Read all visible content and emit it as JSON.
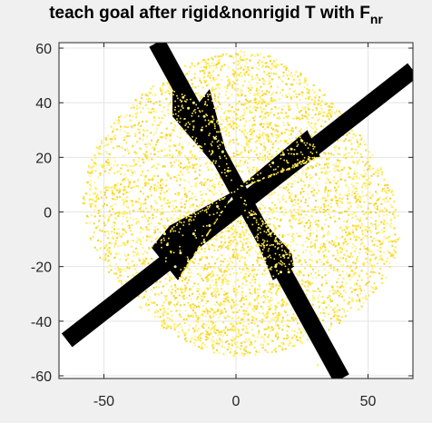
{
  "chart_data": {
    "type": "scatter",
    "title": "teach goal after rigid&nonrigid T with F",
    "title_subscript": "nr",
    "xlim": [
      -67,
      67
    ],
    "ylim": [
      -61,
      62
    ],
    "x_ticks": [
      -50,
      0,
      50
    ],
    "y_ticks": [
      60,
      40,
      20,
      0,
      -20,
      -40,
      -60
    ],
    "grid": true,
    "colors": {
      "cloud": [
        "#ffe94a",
        "#f5d32b",
        "#fff38a"
      ],
      "background": "#ffffff",
      "figure": "#f0f0f0",
      "marks": "#000000"
    },
    "series": [
      {
        "type": "line",
        "values": [
          [
            -30,
            62
          ],
          [
            40,
            -61
          ]
        ]
      },
      {
        "type": "line",
        "values": [
          [
            -64,
            -47
          ],
          [
            67,
            52
          ]
        ]
      },
      {
        "type": "polygon",
        "values": [
          [
            0,
            8
          ],
          [
            -24,
            35
          ],
          [
            -24,
            45
          ],
          [
            -14,
            40
          ],
          [
            -10,
            45
          ]
        ]
      },
      {
        "type": "polygon",
        "values": [
          [
            0,
            8
          ],
          [
            27,
            30
          ],
          [
            32,
            20
          ],
          [
            28,
            20
          ]
        ]
      },
      {
        "type": "polygon",
        "values": [
          [
            0,
            8
          ],
          [
            -25,
            -5
          ],
          [
            -32,
            -13
          ],
          [
            -22,
            -25
          ],
          [
            -20,
            -22
          ]
        ]
      },
      {
        "type": "polygon",
        "values": [
          [
            0,
            8
          ],
          [
            14,
            -25
          ],
          [
            22,
            -20
          ],
          [
            21,
            -15
          ]
        ]
      },
      {
        "type": "scatter",
        "values": [
          [
            -16,
            40
          ],
          [
            -12,
            35
          ],
          [
            -8,
            27
          ],
          [
            -13,
            30
          ],
          [
            -18,
            38
          ],
          [
            -5,
            22
          ],
          [
            -9,
            33
          ],
          [
            -20,
            42
          ],
          [
            -14,
            24
          ],
          [
            -3,
            15
          ],
          [
            12,
            22
          ],
          [
            17,
            26
          ],
          [
            21,
            23
          ],
          [
            23,
            17
          ],
          [
            18,
            21
          ],
          [
            8,
            16
          ],
          [
            25,
            26
          ],
          [
            14,
            18
          ],
          [
            5,
            12
          ],
          [
            -10,
            -5
          ],
          [
            -16,
            -8
          ],
          [
            -21,
            -15
          ],
          [
            -26,
            -12
          ],
          [
            -18,
            -18
          ],
          [
            -12,
            -11
          ],
          [
            -7,
            2
          ],
          [
            -23,
            -20
          ],
          [
            -27,
            -8
          ],
          [
            -14,
            -15
          ],
          [
            4,
            -5
          ],
          [
            8,
            -12
          ],
          [
            11,
            -17
          ],
          [
            15,
            -20
          ],
          [
            18,
            -16
          ],
          [
            13,
            -8
          ],
          [
            20,
            -22
          ],
          [
            6,
            -1
          ],
          [
            3,
            -32
          ],
          [
            17,
            -22
          ],
          [
            25,
            -48
          ],
          [
            31,
            -56
          ]
        ]
      }
    ]
  }
}
